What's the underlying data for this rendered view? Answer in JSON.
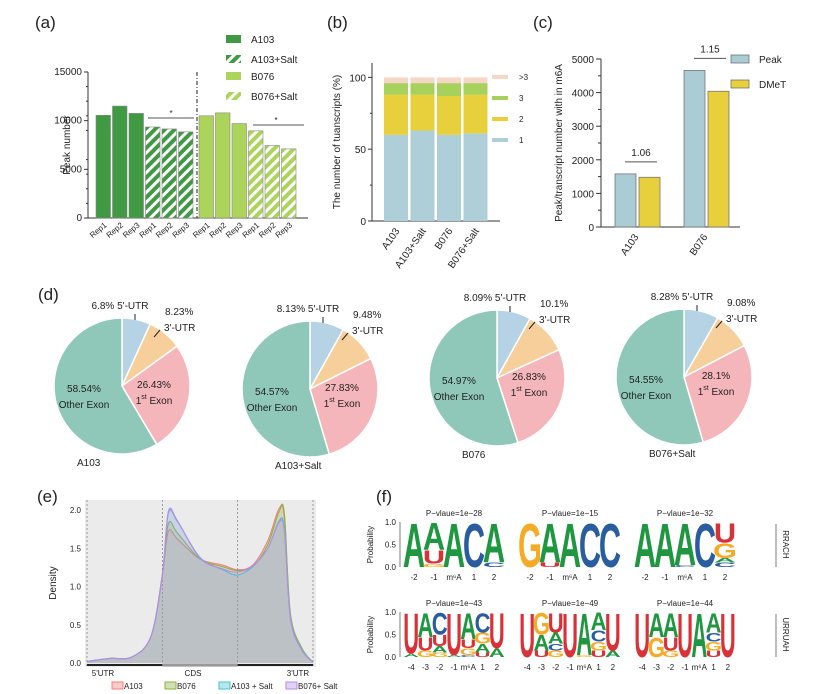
{
  "panels": {
    "a": "(a)",
    "b": "(b)",
    "c": "(c)",
    "d": "(d)",
    "e": "(e)",
    "f": "(f)"
  },
  "colors": {
    "dark_green": "#3f9a43",
    "light_green": "#acd45a",
    "peak_blue": "#a9ccd5",
    "dmet_yellow": "#e8cf3c",
    "b_one": "#aecfd8",
    "b_two": "#e8cf3c",
    "b_three": "#a6d15d",
    "b_gt3": "#f6d7c6",
    "pie_5utr": "#b6d2e5",
    "pie_3utr": "#f6cf9a",
    "pie_1st": "#f5b6bb",
    "pie_other": "#8fc8b9",
    "nt_A": "#1f9640",
    "nt_C": "#2a5d9f",
    "nt_G": "#f4ab26",
    "nt_U": "#d93138"
  },
  "chart_data": [
    {
      "id": "a",
      "type": "bar",
      "title": "",
      "xlabel": "",
      "ylabel": "Peak number",
      "ylim": [
        0,
        15000
      ],
      "yticks": [
        "0",
        "5000",
        "10000",
        "15000"
      ],
      "categories": [
        "Rep1",
        "Rep2",
        "Rep3",
        "Rep1",
        "Rep2",
        "Rep3",
        "Rep1",
        "Rep2",
        "Rep3",
        "Rep1",
        "Rep2",
        "Rep3"
      ],
      "series": [
        {
          "name": "A103",
          "values": [
            10550,
            11500,
            10750
          ]
        },
        {
          "name": "A103+Salt",
          "values": [
            9350,
            9150,
            8850
          ]
        },
        {
          "name": "B076",
          "values": [
            10500,
            10800,
            9700
          ]
        },
        {
          "name": "B076+Salt",
          "values": [
            8950,
            7450,
            7100
          ]
        }
      ],
      "legend": [
        "A103",
        "A103+Salt",
        "B076",
        "B076+Salt"
      ],
      "legend_position": "top-right",
      "annotations": [
        "*",
        "*"
      ]
    },
    {
      "id": "b",
      "type": "bar",
      "stacked": true,
      "ylabel": "The number of tuanscripts (%)",
      "ylim": [
        0,
        100
      ],
      "yticks": [
        "0",
        "50",
        "100"
      ],
      "categories": [
        "A103",
        "A103+Salt",
        "B076",
        "B076+Salt"
      ],
      "series": [
        {
          "name": "1",
          "values": [
            60,
            63,
            60,
            61
          ]
        },
        {
          "name": "2",
          "values": [
            28,
            25,
            27,
            27
          ]
        },
        {
          "name": "3",
          "values": [
            8,
            8,
            9,
            8
          ]
        },
        {
          "name": ">3",
          "values": [
            4,
            4,
            4,
            4
          ]
        }
      ],
      "legend": [
        ">3",
        "3",
        "2",
        "1"
      ],
      "legend_position": "right"
    },
    {
      "id": "c",
      "type": "bar",
      "ylabel": "Peak/transcript number with in m6A",
      "ylim": [
        0,
        5000
      ],
      "yticks": [
        "0",
        "1000",
        "2000",
        "3000",
        "4000",
        "5000"
      ],
      "categories": [
        "A103",
        "B076"
      ],
      "series": [
        {
          "name": "Peak",
          "values": [
            1580,
            4660
          ]
        },
        {
          "name": "DMeT",
          "values": [
            1480,
            4040
          ]
        }
      ],
      "annotations": [
        "1.06",
        "1.15"
      ],
      "legend_position": "top-right"
    },
    {
      "id": "d",
      "type": "pie",
      "pies": [
        {
          "name": "A103",
          "slices": [
            {
              "label": "5'-UTR",
              "value": 6.8,
              "text": "6.8%"
            },
            {
              "label": "3'-UTR",
              "value": 8.23,
              "text": "8.23%"
            },
            {
              "label": "1st Exon",
              "value": 26.43,
              "text": "26.43%"
            },
            {
              "label": "Other Exon",
              "value": 58.54,
              "text": "58.54%"
            }
          ]
        },
        {
          "name": "A103+Salt",
          "slices": [
            {
              "label": "5'-UTR",
              "value": 8.13,
              "text": "8.13%"
            },
            {
              "label": "3'-UTR",
              "value": 9.48,
              "text": "9.48%"
            },
            {
              "label": "1st Exon",
              "value": 27.83,
              "text": "27.83%"
            },
            {
              "label": "Other Exon",
              "value": 54.57,
              "text": "54.57%"
            }
          ]
        },
        {
          "name": "B076",
          "slices": [
            {
              "label": "5'-UTR",
              "value": 8.09,
              "text": "8.09%"
            },
            {
              "label": "3'-UTR",
              "value": 10.1,
              "text": "10.1%"
            },
            {
              "label": "1st Exon",
              "value": 26.83,
              "text": "26.83%"
            },
            {
              "label": "Other Exon",
              "value": 54.97,
              "text": "54.97%"
            }
          ]
        },
        {
          "name": "B076+Salt",
          "slices": [
            {
              "label": "5'-UTR",
              "value": 8.28,
              "text": "8.28%"
            },
            {
              "label": "3'-UTR",
              "value": 9.08,
              "text": "9.08%"
            },
            {
              "label": "1st Exon",
              "value": 28.1,
              "text": "28.1%"
            },
            {
              "label": "Other Exon",
              "value": 54.55,
              "text": "54.55%"
            }
          ]
        }
      ]
    },
    {
      "id": "e",
      "type": "area",
      "ylabel": "Density",
      "ylim": [
        0,
        2.1
      ],
      "yticks": [
        "0.0",
        "0.5",
        "1.0",
        "1.5",
        "2.0"
      ],
      "xlim": [
        0,
        3
      ],
      "regions": [
        "5'UTR",
        "CDS",
        "3'UTR"
      ],
      "x": [
        0,
        0.3,
        0.6,
        0.85,
        1.0,
        1.08,
        1.2,
        1.5,
        1.8,
        2.0,
        2.2,
        2.4,
        2.55,
        2.62,
        2.7,
        2.85,
        3.0
      ],
      "series": [
        {
          "name": "A103",
          "color": "#f08080",
          "values": [
            0.02,
            0.06,
            0.08,
            0.35,
            1.15,
            1.72,
            1.62,
            1.36,
            1.28,
            1.22,
            1.28,
            1.6,
            2.02,
            1.9,
            0.6,
            0.18,
            0.01
          ]
        },
        {
          "name": "B076",
          "color": "#8cb23f",
          "values": [
            0.02,
            0.06,
            0.08,
            0.35,
            1.15,
            1.82,
            1.7,
            1.36,
            1.26,
            1.21,
            1.26,
            1.55,
            1.98,
            1.95,
            0.65,
            0.2,
            0.01
          ]
        },
        {
          "name": "A103 + Salt",
          "color": "#45c3d3",
          "values": [
            0.02,
            0.06,
            0.08,
            0.35,
            1.15,
            1.96,
            1.85,
            1.38,
            1.22,
            1.15,
            1.26,
            1.5,
            1.86,
            1.75,
            0.6,
            0.18,
            0.01
          ]
        },
        {
          "name": "B076+ Salt",
          "color": "#b98be6",
          "values": [
            0.02,
            0.06,
            0.08,
            0.35,
            1.15,
            1.98,
            1.86,
            1.37,
            1.23,
            1.19,
            1.27,
            1.5,
            1.84,
            1.72,
            0.58,
            0.17,
            0.01
          ]
        }
      ],
      "legend_position": "bottom"
    },
    {
      "id": "f",
      "type": "table",
      "ylabel": "Probability",
      "yticks": [
        "0.0",
        "0.5",
        "1.0"
      ],
      "rows": [
        {
          "group": "RRACH",
          "logos": [
            {
              "pvalue": "P−vlaue=1e−28",
              "positions": [
                "-2",
                "-1",
                "m6A",
                "1",
                "2"
              ],
              "letters": [
                [
                  [
                    "A",
                    1.0
                  ]
                ],
                [
                  [
                    "A",
                    0.62
                  ],
                  [
                    "U",
                    0.3
                  ],
                  [
                    "G",
                    0.08
                  ]
                ],
                [
                  [
                    "A",
                    1.0
                  ]
                ],
                [
                  [
                    "C",
                    1.0
                  ]
                ],
                [
                  [
                    "A",
                    0.9
                  ],
                  [
                    "C",
                    0.1
                  ]
                ]
              ]
            },
            {
              "pvalue": "P−vlaue=1e−15",
              "positions": [
                "-2",
                "-1",
                "m6A",
                "1",
                "2"
              ],
              "letters": [
                [
                  [
                    "G",
                    1.0
                  ]
                ],
                [
                  [
                    "A",
                    0.9
                  ],
                  [
                    "U",
                    0.1
                  ]
                ],
                [
                  [
                    "A",
                    1.0
                  ]
                ],
                [
                  [
                    "C",
                    1.0
                  ]
                ],
                [
                  [
                    "C",
                    1.0
                  ]
                ]
              ]
            },
            {
              "pvalue": "P−vlaue=1e−32",
              "positions": [
                "-2",
                "-1",
                "m6A",
                "1",
                "2"
              ],
              "letters": [
                [
                  [
                    "A",
                    1.0
                  ]
                ],
                [
                  [
                    "A",
                    1.0
                  ]
                ],
                [
                  [
                    "A",
                    0.96
                  ],
                  [
                    "C",
                    0.04
                  ]
                ],
                [
                  [
                    "C",
                    1.0
                  ]
                ],
                [
                  [
                    "U",
                    0.45
                  ],
                  [
                    "G",
                    0.35
                  ],
                  [
                    "C",
                    0.1
                  ],
                  [
                    "A",
                    0.1
                  ]
                ]
              ]
            }
          ]
        },
        {
          "group": "URRUAH",
          "logos": [
            {
              "pvalue": "P−vlaue=1e−43",
              "positions": [
                "-4",
                "-3",
                "-2",
                "-1",
                "m6A",
                "1",
                "2"
              ],
              "letters": [
                [
                  [
                    "U",
                    0.92
                  ],
                  [
                    "A",
                    0.08
                  ]
                ],
                [
                  [
                    "A",
                    0.55
                  ],
                  [
                    "U",
                    0.3
                  ],
                  [
                    "G",
                    0.15
                  ]
                ],
                [
                  [
                    "C",
                    0.5
                  ],
                  [
                    "U",
                    0.25
                  ],
                  [
                    "A",
                    0.15
                  ],
                  [
                    "G",
                    0.1
                  ]
                ],
                [
                  [
                    "U",
                    0.95
                  ],
                  [
                    "A",
                    0.05
                  ]
                ],
                [
                  [
                    "A",
                    0.6
                  ],
                  [
                    "U",
                    0.2
                  ],
                  [
                    "G",
                    0.15
                  ],
                  [
                    "C",
                    0.05
                  ]
                ],
                [
                  [
                    "C",
                    0.45
                  ],
                  [
                    "G",
                    0.25
                  ],
                  [
                    "A",
                    0.2
                  ],
                  [
                    "U",
                    0.1
                  ]
                ],
                [
                  [
                    "U",
                    0.8
                  ],
                  [
                    "A",
                    0.2
                  ]
                ]
              ]
            },
            {
              "pvalue": "P−vlaue=1e−49",
              "positions": [
                "-4",
                "-3",
                "-2",
                "-1",
                "m6A",
                "1",
                "2"
              ],
              "letters": [
                [
                  [
                    "U",
                    1.0
                  ]
                ],
                [
                  [
                    "G",
                    0.5
                  ],
                  [
                    "A",
                    0.35
                  ],
                  [
                    "U",
                    0.15
                  ]
                ],
                [
                  [
                    "U",
                    0.45
                  ],
                  [
                    "A",
                    0.25
                  ],
                  [
                    "G",
                    0.15
                  ],
                  [
                    "C",
                    0.15
                  ]
                ],
                [
                  [
                    "U",
                    1.0
                  ]
                ],
                [
                  [
                    "A",
                    0.95
                  ],
                  [
                    "G",
                    0.05
                  ]
                ],
                [
                  [
                    "A",
                    0.4
                  ],
                  [
                    "C",
                    0.25
                  ],
                  [
                    "G",
                    0.2
                  ],
                  [
                    "U",
                    0.15
                  ]
                ],
                [
                  [
                    "U",
                    0.85
                  ],
                  [
                    "A",
                    0.15
                  ]
                ]
              ]
            },
            {
              "pvalue": "P−vlaue=1e−44",
              "positions": [
                "-4",
                "-3",
                "-2",
                "-1",
                "m6A",
                "1",
                "2"
              ],
              "letters": [
                [
                  [
                    "U",
                    1.0
                  ]
                ],
                [
                  [
                    "A",
                    0.55
                  ],
                  [
                    "G",
                    0.45
                  ]
                ],
                [
                  [
                    "A",
                    0.55
                  ],
                  [
                    "U",
                    0.3
                  ],
                  [
                    "G",
                    0.15
                  ]
                ],
                [
                  [
                    "U",
                    1.0
                  ]
                ],
                [
                  [
                    "A",
                    1.0
                  ]
                ],
                [
                  [
                    "A",
                    0.45
                  ],
                  [
                    "G",
                    0.2
                  ],
                  [
                    "C",
                    0.2
                  ],
                  [
                    "U",
                    0.15
                  ]
                ],
                [
                  [
                    "U",
                    1.0
                  ]
                ]
              ]
            }
          ]
        }
      ]
    }
  ]
}
